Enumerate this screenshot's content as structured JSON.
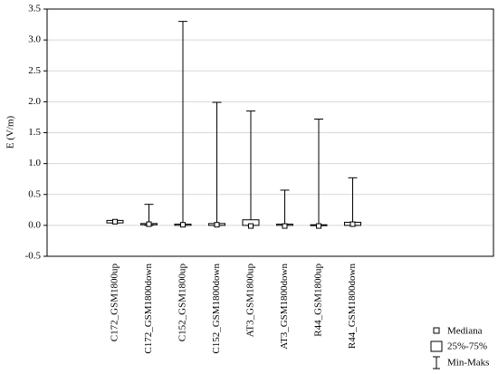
{
  "chart_data": {
    "type": "box",
    "y_label": "E (V/m)",
    "categories": [
      "C172_GSM1800up",
      "C172_GSM1800down",
      "C152_GSM1800up",
      "C152_GSM1800down",
      "AT3_GSM1800up",
      "AT3_GSM1800down",
      "R44_GSM1800up",
      "R44_GSM1800down"
    ],
    "min": [
      0.04,
      0.0,
      0.0,
      0.0,
      0.0,
      0.0,
      0.0,
      0.0
    ],
    "q1": [
      0.04,
      0.01,
      0.0,
      0.0,
      0.0,
      0.0,
      0.0,
      0.0
    ],
    "median": [
      0.06,
      0.02,
      0.01,
      0.01,
      -0.01,
      -0.01,
      -0.01,
      0.02
    ],
    "q3": [
      0.08,
      0.03,
      0.02,
      0.03,
      0.09,
      0.02,
      0.01,
      0.05
    ],
    "max": [
      0.08,
      0.34,
      3.3,
      1.99,
      1.85,
      0.57,
      1.72,
      0.77
    ],
    "color": "#000000",
    "ylim": [
      -0.5,
      3.5
    ],
    "yticks": [
      -0.5,
      {
        "value": 0,
        "label": "0.0"
      },
      0.5,
      {
        "value": 1,
        "label": "1.0"
      },
      1.5,
      {
        "value": 2,
        "label": "2.0"
      },
      2.5,
      {
        "value": 3,
        "label": "3.0"
      },
      3.5
    ],
    "grid": true,
    "legend": {
      "median": "Mediana",
      "box": "25%-75%",
      "whisker": "Min-Maks"
    },
    "legend_position": "bottom-right"
  }
}
